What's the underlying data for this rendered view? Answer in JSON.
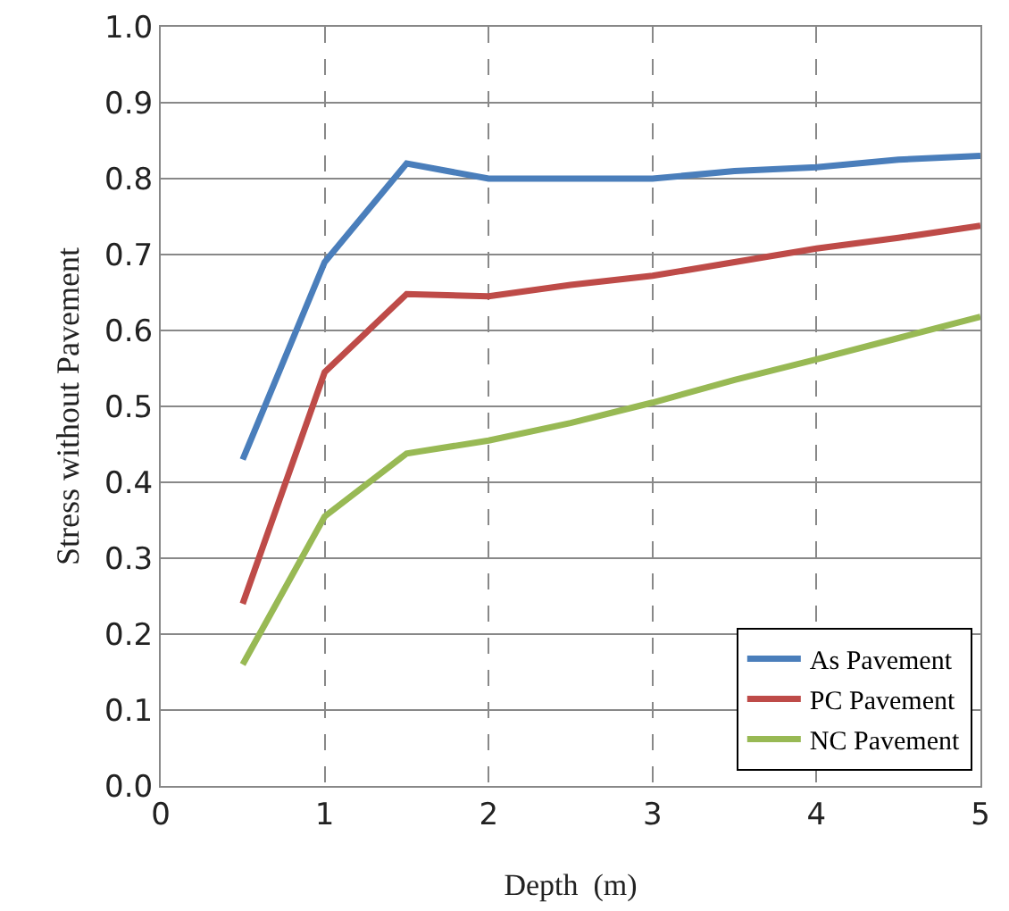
{
  "chart_data": {
    "type": "line",
    "xlabel": "Depth  (m)",
    "ylabel": "Stress without Pavement",
    "x": [
      0.5,
      1,
      1.5,
      2,
      2.5,
      3,
      3.5,
      4,
      4.5,
      5
    ],
    "series": [
      {
        "name": "As Pavement",
        "color": "#4a7ebb",
        "values": [
          0.43,
          0.69,
          0.82,
          0.8,
          0.8,
          0.8,
          0.81,
          0.815,
          0.825,
          0.83
        ]
      },
      {
        "name": "PC Pavement",
        "color": "#be4b48",
        "values": [
          0.24,
          0.545,
          0.648,
          0.645,
          0.66,
          0.672,
          0.69,
          0.708,
          0.722,
          0.738
        ]
      },
      {
        "name": "NC Pavement",
        "color": "#98b954",
        "values": [
          0.16,
          0.355,
          0.438,
          0.455,
          0.478,
          0.505,
          0.535,
          0.562,
          0.59,
          0.618
        ]
      }
    ],
    "xlim": [
      0,
      5
    ],
    "xticks": [
      0,
      1,
      2,
      3,
      4,
      5
    ],
    "ylim": [
      0,
      1
    ],
    "yticks": [
      {
        "value": 0,
        "label": "0.0"
      },
      0.1,
      0.2,
      0.3,
      0.4,
      0.5,
      0.6,
      0.7,
      0.8,
      0.9,
      {
        "value": 1,
        "label": "1.0"
      }
    ],
    "grid": true,
    "legend": "bottom right",
    "marker": "none",
    "line_style": "solid"
  }
}
